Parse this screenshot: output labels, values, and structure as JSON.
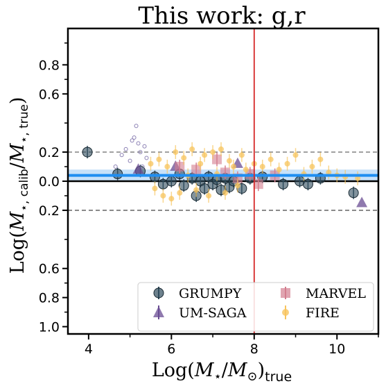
{
  "chart_data": {
    "type": "scatter",
    "title": "This work: g,r",
    "xlabel_main": "Log(",
    "xlabel_sym": "M",
    "xlabel_star": "⋆",
    "xlabel_mid": "/",
    "xlabel_sun": "M",
    "xlabel_sun_sub": "⊙",
    "xlabel_end": ")",
    "xlabel_sub": "true",
    "ylabel_main": "Log(",
    "ylabel_sym": "M",
    "ylabel_sub1": "⋆, calib",
    "ylabel_mid": "/",
    "ylabel_sub2": "⋆, true",
    "ylabel_end": ")",
    "xlim": [
      3.5,
      11.0
    ],
    "ylim": [
      -1.05,
      1.05
    ],
    "x_ticks": [
      4,
      6,
      8,
      10
    ],
    "x_ticklabels": [
      "4",
      "6",
      "8",
      "10"
    ],
    "y_ticks": [
      0.8,
      0.6,
      0.2,
      0.0,
      -0.2,
      -0.6,
      -0.8,
      -1.0
    ],
    "y_ticklabels": [
      "0.8",
      "0.6",
      "0.2",
      "0.0",
      "0.2",
      "0.6",
      "0.8",
      "1.0"
    ],
    "hlines": [
      {
        "y": 0.2,
        "style": "dashed",
        "color": "#777777"
      },
      {
        "y": -0.2,
        "style": "dashed",
        "color": "#555555"
      },
      {
        "y": 0.0,
        "style": "solid",
        "color": "#000000"
      }
    ],
    "vline": {
      "x": 8.0,
      "color": "#d62728"
    },
    "fit": {
      "y": 0.04,
      "band": [
        0.0,
        0.08
      ],
      "color": "#1f8ef1",
      "band_color": "#b9d9f8"
    },
    "legend_position": "lower-right",
    "series": [
      {
        "name": "GRUMPY",
        "marker": "circle",
        "color": "#2f4b5c",
        "points": [
          [
            3.97,
            0.2
          ],
          [
            4.7,
            0.05
          ],
          [
            5.25,
            0.07
          ],
          [
            5.6,
            0.03
          ],
          [
            5.8,
            -0.02
          ],
          [
            6.0,
            0.0
          ],
          [
            6.2,
            0.05
          ],
          [
            6.3,
            -0.03
          ],
          [
            6.5,
            0.02
          ],
          [
            6.6,
            -0.1
          ],
          [
            6.7,
            0.0
          ],
          [
            6.8,
            -0.05
          ],
          [
            6.9,
            0.03
          ],
          [
            7.0,
            -0.02
          ],
          [
            7.1,
            0.01
          ],
          [
            7.2,
            -0.06
          ],
          [
            7.3,
            0.02
          ],
          [
            7.4,
            -0.04
          ],
          [
            7.5,
            0.0
          ],
          [
            7.7,
            -0.05
          ],
          [
            7.9,
            0.02
          ],
          [
            8.2,
            0.03
          ],
          [
            8.7,
            -0.02
          ],
          [
            9.1,
            0.0
          ],
          [
            9.3,
            -0.02
          ],
          [
            9.6,
            0.02
          ],
          [
            10.4,
            -0.08
          ]
        ]
      },
      {
        "name": "UM-SAGA",
        "marker": "triangle",
        "color": "#6a4c93",
        "points": [
          [
            10.6,
            -0.15
          ],
          [
            7.6,
            0.12
          ],
          [
            5.2,
            0.08
          ],
          [
            6.1,
            0.1
          ]
        ]
      },
      {
        "name": "MARVEL",
        "marker": "square",
        "color": "#d37d8e",
        "points": [
          [
            6.2,
            0.1
          ],
          [
            6.6,
            0.08
          ],
          [
            7.1,
            0.15
          ],
          [
            7.3,
            0.06
          ],
          [
            7.6,
            0.02
          ],
          [
            7.9,
            0.05
          ],
          [
            8.1,
            -0.02
          ],
          [
            8.5,
            0.04
          ]
        ]
      },
      {
        "name": "FIRE",
        "marker": "circle-small",
        "color": "#f7c45e",
        "points": [
          [
            5.5,
            0.12
          ],
          [
            5.6,
            -0.05
          ],
          [
            5.7,
            0.15
          ],
          [
            5.8,
            -0.1
          ],
          [
            5.9,
            0.1
          ],
          [
            6.0,
            -0.12
          ],
          [
            6.1,
            0.2
          ],
          [
            6.2,
            -0.08
          ],
          [
            6.3,
            0.16
          ],
          [
            6.4,
            0.04
          ],
          [
            6.5,
            0.22
          ],
          [
            6.6,
            -0.06
          ],
          [
            6.7,
            0.12
          ],
          [
            6.8,
            0.18
          ],
          [
            6.9,
            -0.1
          ],
          [
            7.0,
            0.2
          ],
          [
            7.1,
            0.05
          ],
          [
            7.2,
            0.22
          ],
          [
            7.3,
            -0.08
          ],
          [
            7.4,
            0.14
          ],
          [
            7.5,
            0.1
          ],
          [
            7.6,
            -0.03
          ],
          [
            7.7,
            0.18
          ],
          [
            7.8,
            0.08
          ],
          [
            8.0,
            0.12
          ],
          [
            8.2,
            0.1
          ],
          [
            8.4,
            0.15
          ],
          [
            8.6,
            0.08
          ],
          [
            8.8,
            0.12
          ],
          [
            9.0,
            0.18
          ],
          [
            9.2,
            0.05
          ],
          [
            9.4,
            0.1
          ],
          [
            9.6,
            0.15
          ],
          [
            9.8,
            0.06
          ],
          [
            10.0,
            0.04
          ],
          [
            10.2,
            0.03
          ],
          [
            10.5,
            0.02
          ]
        ]
      },
      {
        "name": "",
        "marker": "open-circle",
        "color": "#8a7fb3",
        "points": [
          [
            4.65,
            0.1
          ],
          [
            4.8,
            0.18
          ],
          [
            4.9,
            0.22
          ],
          [
            5.0,
            0.14
          ],
          [
            5.05,
            0.28
          ],
          [
            5.1,
            0.3
          ],
          [
            5.15,
            0.38
          ],
          [
            5.2,
            0.26
          ],
          [
            5.25,
            0.2
          ],
          [
            5.3,
            0.1
          ],
          [
            5.35,
            0.24
          ],
          [
            5.4,
            0.16
          ]
        ]
      }
    ]
  },
  "legend": {
    "items": [
      {
        "label": "GRUMPY"
      },
      {
        "label": "MARVEL"
      },
      {
        "label": "UM-SAGA"
      },
      {
        "label": "FIRE"
      }
    ]
  }
}
